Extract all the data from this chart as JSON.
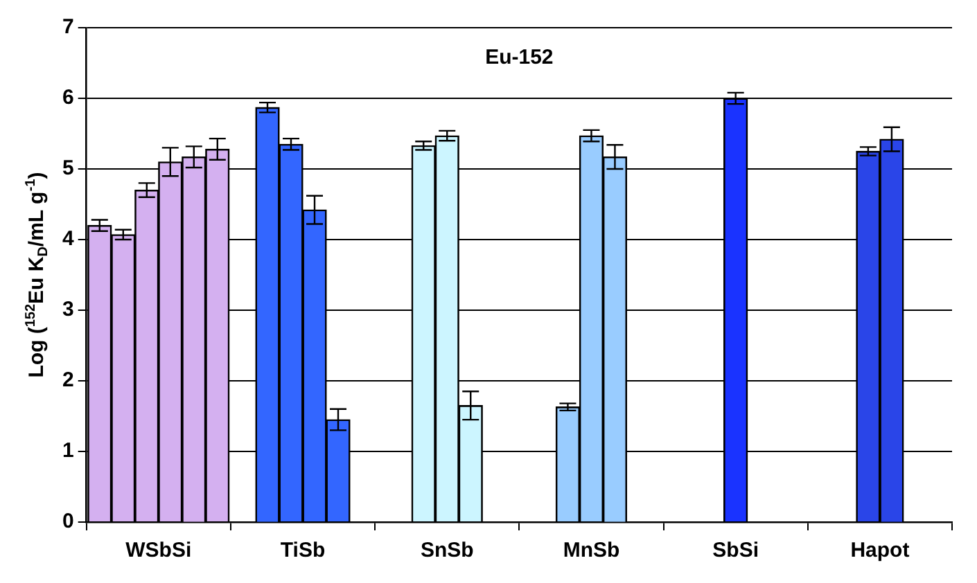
{
  "chart_data": {
    "type": "bar",
    "annotations": [
      "Eu-152"
    ],
    "ylabel": "Log ($^{152}$Eu K$_{D}$/mL g$^{-1}$)",
    "categories": [
      "WSbSi",
      "TiSb",
      "SnSb",
      "MnSb",
      "SbSi",
      "Hapot"
    ],
    "series": [
      {
        "colors": [
          "#d4b0f0",
          "#3366ff",
          "#ccf5ff",
          "#99ccff",
          "#1a33ff",
          "#2a45e8"
        ],
        "values": [
          4.2,
          5.87,
          5.33,
          1.63,
          6.0,
          5.25
        ],
        "errors": [
          0.08,
          0.07,
          0.06,
          0.05,
          0.08,
          0.06
        ]
      },
      {
        "colors": [
          "#d4b0f0",
          "#3366ff",
          "#ccf5ff",
          "#99ccff",
          "#1a33ff",
          "#2a45e8"
        ],
        "values": [
          4.07,
          5.35,
          5.47,
          5.47,
          null,
          5.42
        ],
        "errors": [
          0.07,
          0.08,
          0.07,
          0.08,
          null,
          0.17
        ]
      },
      {
        "colors": [
          "#d4b0f0",
          "#3366ff",
          "#ccf5ff",
          "#99ccff",
          "#1a33ff",
          "#2a45e8"
        ],
        "values": [
          4.7,
          4.42,
          1.65,
          5.17,
          null,
          null
        ],
        "errors": [
          0.1,
          0.2,
          0.2,
          0.17,
          null,
          null
        ]
      },
      {
        "colors": [
          "#d4b0f0",
          "#3366ff",
          "#ccf5ff",
          "#99ccff",
          "#1a33ff",
          "#2a45e8"
        ],
        "values": [
          5.1,
          1.45,
          null,
          null,
          null,
          null
        ],
        "errors": [
          0.2,
          0.15,
          null,
          null,
          null,
          null
        ]
      },
      {
        "colors": [
          "#d4b0f0",
          "#3366ff",
          "#ccf5ff",
          "#99ccff",
          "#1a33ff",
          "#2a45e8"
        ],
        "values": [
          5.17,
          null,
          null,
          null,
          null,
          null
        ],
        "errors": [
          0.15,
          null,
          null,
          null,
          null,
          null
        ]
      },
      {
        "colors": [
          "#d4b0f0",
          "#3366ff",
          "#ccf5ff",
          "#99ccff",
          "#1a33ff",
          "#2a45e8"
        ],
        "values": [
          5.28,
          null,
          null,
          null,
          null,
          null
        ],
        "errors": [
          0.15,
          null,
          null,
          null,
          null,
          null
        ]
      }
    ],
    "ylim": [
      0,
      7
    ],
    "yticks": [
      0,
      1,
      2,
      3,
      4,
      5,
      6,
      7
    ],
    "grid": "y",
    "legend": false
  }
}
